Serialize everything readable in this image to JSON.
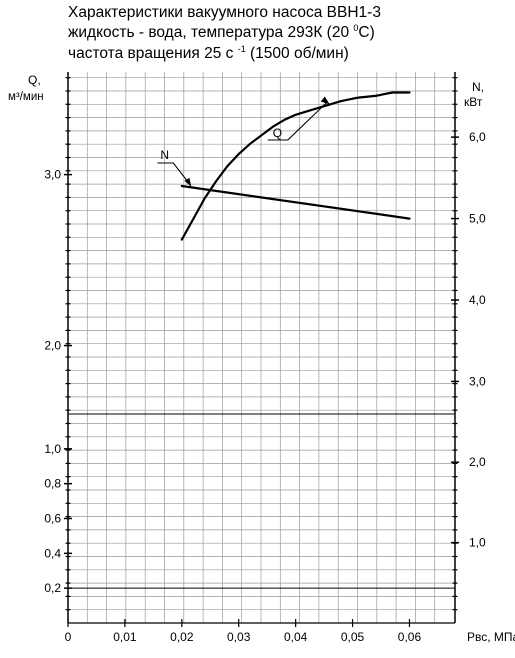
{
  "chart_data": {
    "type": "line",
    "title": {
      "line1": "Характеристики вакуумного насоса ВВН1-3",
      "line2_pre": "жидкость - вода, температура 293К (20 ",
      "line2_sup": "0",
      "line2_post": "С)",
      "line3_pre": "частота вращения 25 с ",
      "line3_sup": "-1",
      "line3_post": " (1500 об/мин)"
    },
    "xlabel": "Рвс, МПа",
    "x_ticks": [
      "0",
      "0,01",
      "0,02",
      "0,03",
      "0,04",
      "0,05",
      "0,06"
    ],
    "xlim": [
      0,
      0.068
    ],
    "y_left": {
      "label_1": "Q,",
      "label_2": "м³/мин",
      "upper_ticks": [
        {
          "label": "2,0",
          "value": 2.0
        },
        {
          "label": "3,0",
          "value": 3.0
        }
      ],
      "upper_range": [
        1.6,
        3.6
      ],
      "lower_ticks": [
        {
          "label": "0,2",
          "value": 0.2
        },
        {
          "label": "0,4",
          "value": 0.4
        },
        {
          "label": "0,6",
          "value": 0.6
        },
        {
          "label": "0,8",
          "value": 0.8
        },
        {
          "label": "1,0",
          "value": 1.0
        }
      ],
      "lower_range": [
        0.0,
        1.2
      ]
    },
    "y_right": {
      "label_1": "N,",
      "label_2": "кВт",
      "upper_ticks": [
        {
          "label": "3,0",
          "value": 3.0
        },
        {
          "label": "4,0",
          "value": 4.0
        },
        {
          "label": "5,0",
          "value": 5.0
        },
        {
          "label": "6,0",
          "value": 6.0
        }
      ],
      "upper_range": [
        2.6,
        6.8
      ],
      "lower_ticks": [
        {
          "label": "1,0",
          "value": 1.0
        },
        {
          "label": "2,0",
          "value": 2.0
        }
      ],
      "lower_range": [
        0.0,
        2.6
      ]
    },
    "grid": true,
    "series": [
      {
        "name": "Q",
        "axis": "left",
        "x": [
          0.02,
          0.022,
          0.024,
          0.026,
          0.028,
          0.03,
          0.032,
          0.034,
          0.036,
          0.038,
          0.04,
          0.042,
          0.045,
          0.048,
          0.051,
          0.054,
          0.057,
          0.06
        ],
        "y": [
          2.62,
          2.74,
          2.86,
          2.96,
          3.05,
          3.12,
          3.18,
          3.23,
          3.28,
          3.32,
          3.35,
          3.37,
          3.4,
          3.43,
          3.45,
          3.46,
          3.48,
          3.48
        ]
      },
      {
        "name": "N",
        "axis": "right",
        "x": [
          0.02,
          0.06
        ],
        "y": [
          5.4,
          5.0
        ]
      }
    ]
  },
  "colors": {
    "line": "#000000",
    "grid": "#9a9a9a"
  }
}
